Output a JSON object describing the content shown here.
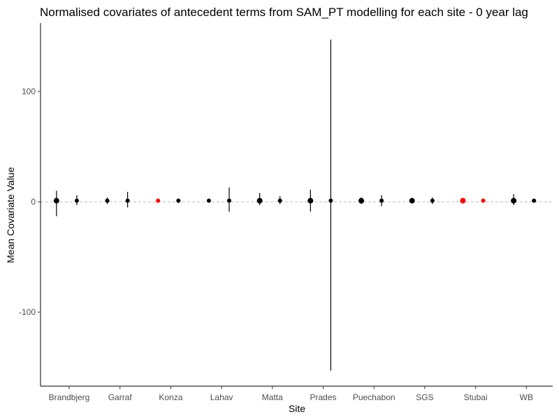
{
  "chart_data": {
    "type": "scatter",
    "title": "Normalised covariates of antecedent terms from SAM_PT modelling for each site - 0 year lag",
    "xlabel": "Site",
    "ylabel": "Mean Covariate Value",
    "categories": [
      "Brandbjerg",
      "Garraf",
      "Konza",
      "Lahav",
      "Matta",
      "Prades",
      "Puechabon",
      "SGS",
      "Stubai",
      "WB"
    ],
    "y_ticks": [
      -100,
      0,
      100
    ],
    "ylim": [
      -160,
      150
    ],
    "reference_line": {
      "y": 0,
      "style": "dashed"
    },
    "grid": false,
    "colors": {
      "normal": "#000000",
      "highlight": "#ff0000",
      "reference": "#bdbdbd"
    },
    "points": [
      {
        "site": "Brandbjerg",
        "offset": -0.25,
        "y": 1,
        "lower": -13,
        "upper": 10,
        "color": "#000000",
        "size": 4
      },
      {
        "site": "Brandbjerg",
        "offset": 0.15,
        "y": 1,
        "lower": -3,
        "upper": 6,
        "color": "#000000",
        "size": 3
      },
      {
        "site": "Garraf",
        "offset": -0.25,
        "y": 1,
        "lower": -2,
        "upper": 4,
        "color": "#000000",
        "size": 3
      },
      {
        "site": "Garraf",
        "offset": 0.15,
        "y": 1,
        "lower": -5,
        "upper": 9,
        "color": "#000000",
        "size": 3
      },
      {
        "site": "Konza",
        "offset": -0.25,
        "y": 1,
        "lower": 0,
        "upper": 2,
        "color": "#ff0000",
        "size": 3
      },
      {
        "site": "Konza",
        "offset": 0.15,
        "y": 1,
        "lower": -1,
        "upper": 3,
        "color": "#000000",
        "size": 3
      },
      {
        "site": "Lahav",
        "offset": -0.25,
        "y": 1,
        "lower": 0,
        "upper": 2,
        "color": "#000000",
        "size": 3
      },
      {
        "site": "Lahav",
        "offset": 0.15,
        "y": 1,
        "lower": -9,
        "upper": 13,
        "color": "#000000",
        "size": 3
      },
      {
        "site": "Matta",
        "offset": -0.25,
        "y": 1,
        "lower": -3,
        "upper": 8,
        "color": "#000000",
        "size": 4
      },
      {
        "site": "Matta",
        "offset": 0.15,
        "y": 1,
        "lower": -2,
        "upper": 5,
        "color": "#000000",
        "size": 3
      },
      {
        "site": "Prades",
        "offset": -0.25,
        "y": 1,
        "lower": -9,
        "upper": 11,
        "color": "#000000",
        "size": 4
      },
      {
        "site": "Prades",
        "offset": 0.15,
        "y": 1,
        "lower": -153,
        "upper": 147,
        "color": "#000000",
        "size": 3
      },
      {
        "site": "Puechabon",
        "offset": -0.25,
        "y": 1,
        "lower": -2,
        "upper": 4,
        "color": "#000000",
        "size": 4
      },
      {
        "site": "Puechabon",
        "offset": 0.15,
        "y": 1,
        "lower": -4,
        "upper": 6,
        "color": "#000000",
        "size": 3
      },
      {
        "site": "SGS",
        "offset": -0.25,
        "y": 1,
        "lower": 0,
        "upper": 2,
        "color": "#000000",
        "size": 4
      },
      {
        "site": "SGS",
        "offset": 0.15,
        "y": 1,
        "lower": -2,
        "upper": 4,
        "color": "#000000",
        "size": 3
      },
      {
        "site": "Stubai",
        "offset": -0.25,
        "y": 1,
        "lower": 0,
        "upper": 2,
        "color": "#ff0000",
        "size": 4
      },
      {
        "site": "Stubai",
        "offset": 0.15,
        "y": 1,
        "lower": 0,
        "upper": 2,
        "color": "#ff0000",
        "size": 3
      },
      {
        "site": "WB",
        "offset": -0.25,
        "y": 1,
        "lower": -3,
        "upper": 7,
        "color": "#000000",
        "size": 4
      },
      {
        "site": "WB",
        "offset": 0.15,
        "y": 1,
        "lower": 0,
        "upper": 2,
        "color": "#000000",
        "size": 3
      }
    ]
  }
}
